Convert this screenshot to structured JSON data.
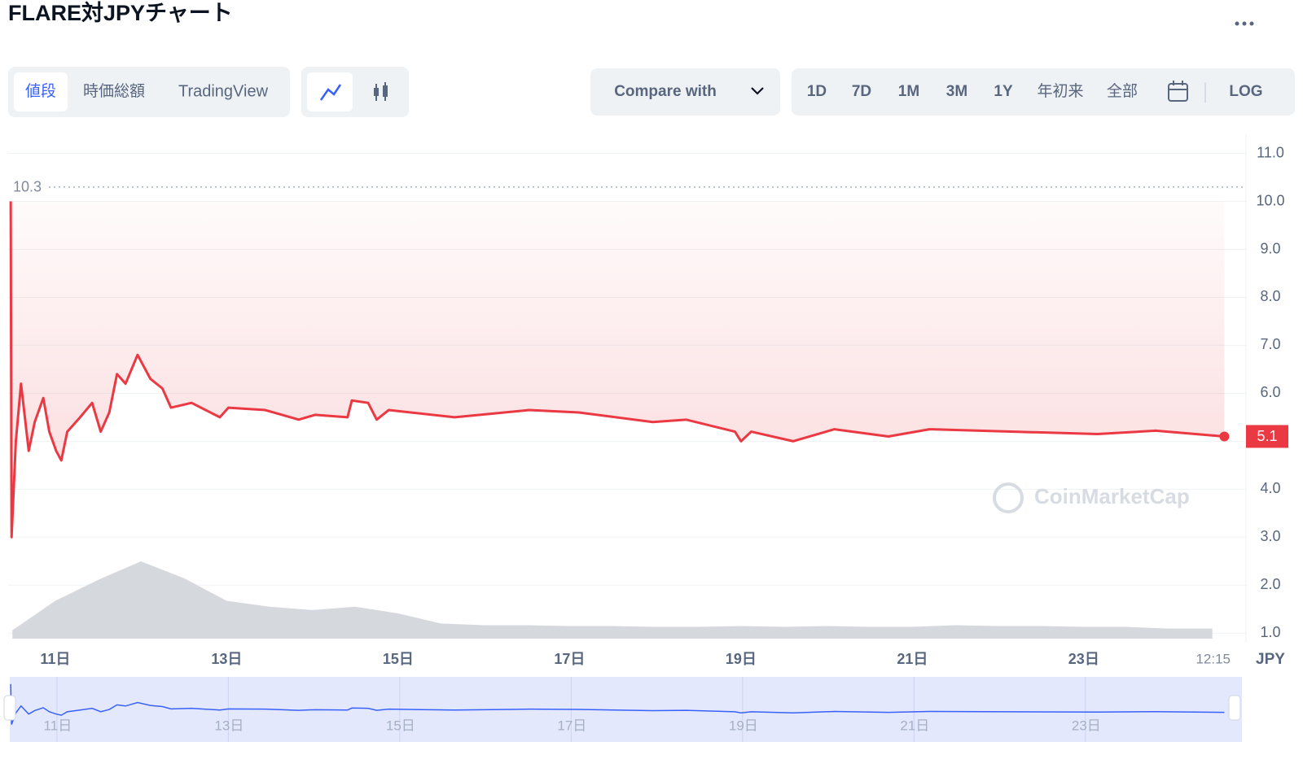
{
  "header": {
    "title": "FLARE対JPYチャート"
  },
  "toolbar": {
    "tabs": [
      "値段",
      "時価総額",
      "TradingView"
    ],
    "compare": "Compare with",
    "ranges": [
      "1D",
      "7D",
      "1M",
      "3M",
      "1Y",
      "年初来",
      "全部"
    ],
    "log": "LOG"
  },
  "chart_data": {
    "type": "line",
    "color": "#ea3943",
    "x": [
      10.48,
      10.49,
      10.54,
      10.6,
      10.69,
      10.76,
      10.86,
      10.93,
      11.01,
      11.07,
      11.14,
      11.29,
      11.43,
      11.53,
      11.63,
      11.72,
      11.82,
      11.96,
      12.11,
      12.25,
      12.35,
      12.59,
      12.92,
      13.02,
      13.45,
      13.84,
      14.03,
      14.41,
      14.46,
      14.65,
      14.75,
      14.89,
      15.66,
      16.53,
      17.11,
      17.97,
      18.36,
      18.93,
      19.0,
      19.12,
      19.61,
      20.09,
      20.72,
      21.2,
      23.16,
      23.84,
      24.64
    ],
    "values": [
      10.0,
      3.0,
      5.0,
      6.2,
      4.8,
      5.4,
      5.9,
      5.2,
      4.8,
      4.6,
      5.2,
      5.5,
      5.8,
      5.2,
      5.6,
      6.4,
      6.2,
      6.8,
      6.3,
      6.1,
      5.7,
      5.8,
      5.5,
      5.7,
      5.65,
      5.45,
      5.55,
      5.5,
      5.85,
      5.8,
      5.45,
      5.65,
      5.5,
      5.65,
      5.6,
      5.4,
      5.45,
      5.2,
      5.0,
      5.2,
      5.0,
      5.25,
      5.1,
      5.25,
      5.15,
      5.22,
      5.1
    ],
    "xlim": [
      10.45,
      24.75
    ],
    "xticks": [
      {
        "value": 11,
        "label": "11日"
      },
      {
        "value": 13,
        "label": "13日"
      },
      {
        "value": 15,
        "label": "15日"
      },
      {
        "value": 17,
        "label": "17日"
      },
      {
        "value": 19,
        "label": "19日"
      },
      {
        "value": 21,
        "label": "21日"
      },
      {
        "value": 23,
        "label": "23日"
      },
      {
        "value": 24.51,
        "label": "12:15"
      }
    ],
    "ylim": [
      0.8,
      11.4
    ],
    "yticks": [
      {
        "value": 1,
        "label": "1.0"
      },
      {
        "value": 2,
        "label": "2.0"
      },
      {
        "value": 3,
        "label": "3.0"
      },
      {
        "value": 4,
        "label": "4.0"
      },
      {
        "value": 5,
        "label": "5.0"
      },
      {
        "value": 6,
        "label": "6.0"
      },
      {
        "value": 7,
        "label": "7.0"
      },
      {
        "value": 8,
        "label": "8.0"
      },
      {
        "value": 9,
        "label": "9.0"
      },
      {
        "value": 10,
        "label": "10.0"
      },
      {
        "value": 11,
        "label": "11.0"
      }
    ],
    "grid": true,
    "currency": "JPY",
    "high": 10.3,
    "last_price": 5.1,
    "watermark": "CoinMarketCap",
    "volume": {
      "color": "#d5d8dd",
      "x": [
        10.5,
        11,
        11.5,
        12,
        12.5,
        13,
        13.5,
        14,
        14.5,
        15,
        15.5,
        16,
        16.5,
        17,
        17.5,
        18,
        18.5,
        19,
        19.5,
        20,
        20.5,
        21,
        21.5,
        22,
        22.5,
        23,
        23.5,
        24,
        24.5
      ],
      "values": [
        10,
        45,
        70,
        92,
        72,
        45,
        38,
        34,
        38,
        30,
        18,
        16,
        16,
        15,
        15,
        14,
        14,
        15,
        14,
        15,
        14,
        14,
        16,
        15,
        15,
        14,
        14,
        12,
        12
      ]
    },
    "navigator_color": "#3861fb"
  }
}
